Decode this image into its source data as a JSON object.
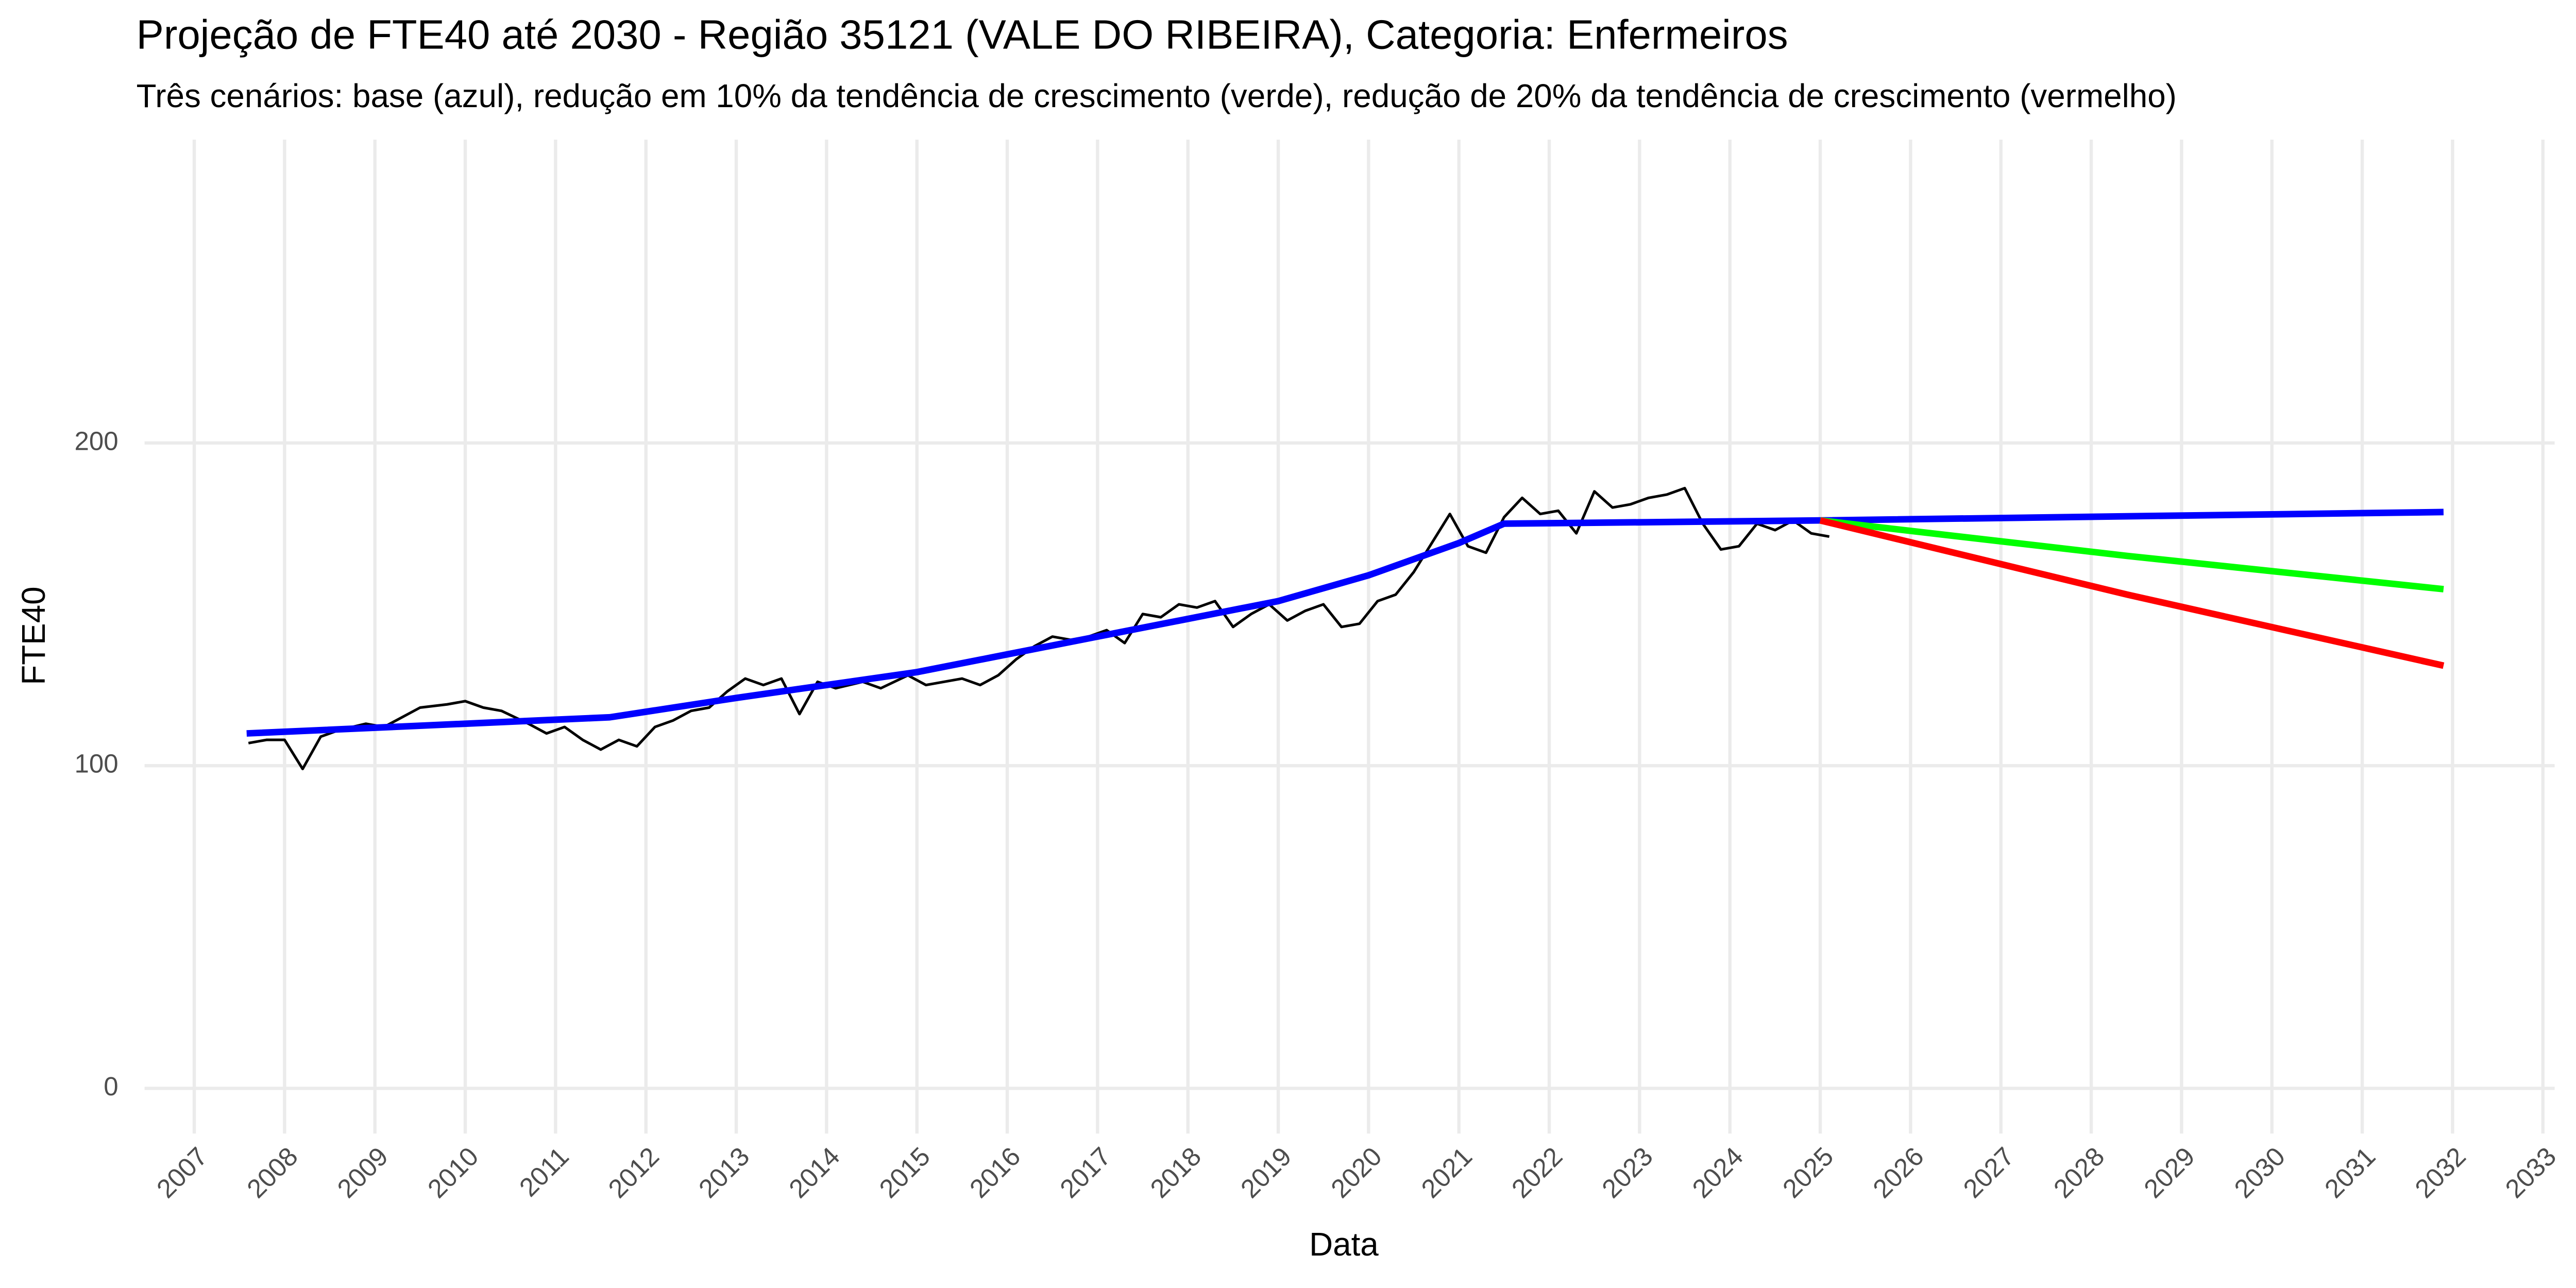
{
  "chart_data": {
    "type": "line",
    "title": "Projeção de FTE40 até 2030 - Região 35121 (VALE DO RIBEIRA), Categoria: Enfermeiros",
    "subtitle": "Três cenários: base (azul), redução em 10% da tendência de crescimento (verde), redução de 20% da tendência de crescimento (vermelho)",
    "x_label": "Data",
    "y_label": "FTE40",
    "xlim": [
      2006.45,
      2033.13
    ],
    "ylim": [
      -14,
      294
    ],
    "xticks": [
      2007,
      2008,
      2009,
      2010,
      2011,
      2012,
      2013,
      2014,
      2015,
      2016,
      2017,
      2018,
      2019,
      2020,
      2021,
      2022,
      2023,
      2024,
      2025,
      2026,
      2027,
      2028,
      2029,
      2030,
      2031,
      2032,
      2033
    ],
    "yticks": [
      0,
      100,
      200
    ],
    "grid": true,
    "series": [
      {
        "color": "#000000",
        "width": 1.6,
        "x": [
          2007.6,
          2007.8,
          2008.0,
          2008.2,
          2008.4,
          2008.6,
          2008.9,
          2009.1,
          2009.3,
          2009.5,
          2009.8,
          2010.0,
          2010.2,
          2010.4,
          2010.7,
          2010.9,
          2011.1,
          2011.3,
          2011.5,
          2011.7,
          2011.9,
          2012.1,
          2012.3,
          2012.5,
          2012.7,
          2012.9,
          2013.1,
          2013.3,
          2013.5,
          2013.7,
          2013.9,
          2014.1,
          2014.4,
          2014.6,
          2014.9,
          2015.1,
          2015.3,
          2015.5,
          2015.7,
          2015.9,
          2016.1,
          2016.3,
          2016.5,
          2016.7,
          2016.9,
          2017.1,
          2017.3,
          2017.5,
          2017.7,
          2017.9,
          2018.1,
          2018.3,
          2018.5,
          2018.7,
          2018.9,
          2019.1,
          2019.3,
          2019.5,
          2019.7,
          2019.9,
          2020.1,
          2020.3,
          2020.5,
          2020.7,
          2020.9,
          2021.1,
          2021.3,
          2021.5,
          2021.7,
          2021.9,
          2022.1,
          2022.3,
          2022.5,
          2022.7,
          2022.9,
          2023.1,
          2023.3,
          2023.5,
          2023.7,
          2023.9,
          2024.1,
          2024.3,
          2024.5,
          2024.7,
          2024.9,
          2025.1
        ],
        "values": [
          107,
          108,
          108,
          99,
          109,
          111,
          113,
          112,
          115,
          118,
          119,
          120,
          118,
          117,
          113,
          110,
          112,
          108,
          105,
          108,
          106,
          112,
          114,
          117,
          118,
          123,
          127,
          125,
          127,
          116,
          126,
          124,
          126,
          124,
          128,
          125,
          126,
          127,
          125,
          128,
          133,
          137,
          140,
          139,
          140,
          142,
          138,
          147,
          146,
          150,
          149,
          151,
          143,
          147,
          150,
          145,
          148,
          150,
          143,
          144,
          151,
          153,
          160,
          169,
          178,
          168,
          166,
          177,
          183,
          178,
          179,
          172,
          185,
          180,
          181,
          183,
          184,
          186,
          175,
          167,
          168,
          175,
          173,
          176,
          172,
          171
        ]
      },
      {
        "color": "#0000ff",
        "width": 4,
        "x": [
          2007.58,
          2011.6,
          2013,
          2015,
          2017,
          2019,
          2020,
          2021,
          2021.5,
          2025.0,
          2031.9
        ],
        "values": [
          110,
          115,
          121,
          129,
          140,
          151,
          159,
          169,
          175,
          176,
          178.6
        ]
      },
      {
        "color": "#00ff00",
        "width": 4,
        "x": [
          2025.0,
          2028.4,
          2031.9
        ],
        "values": [
          176,
          165,
          154.7
        ]
      },
      {
        "color": "#ff0000",
        "width": 4,
        "x": [
          2025.0,
          2028.4,
          2031.9
        ],
        "values": [
          176,
          153,
          131
        ]
      }
    ]
  }
}
